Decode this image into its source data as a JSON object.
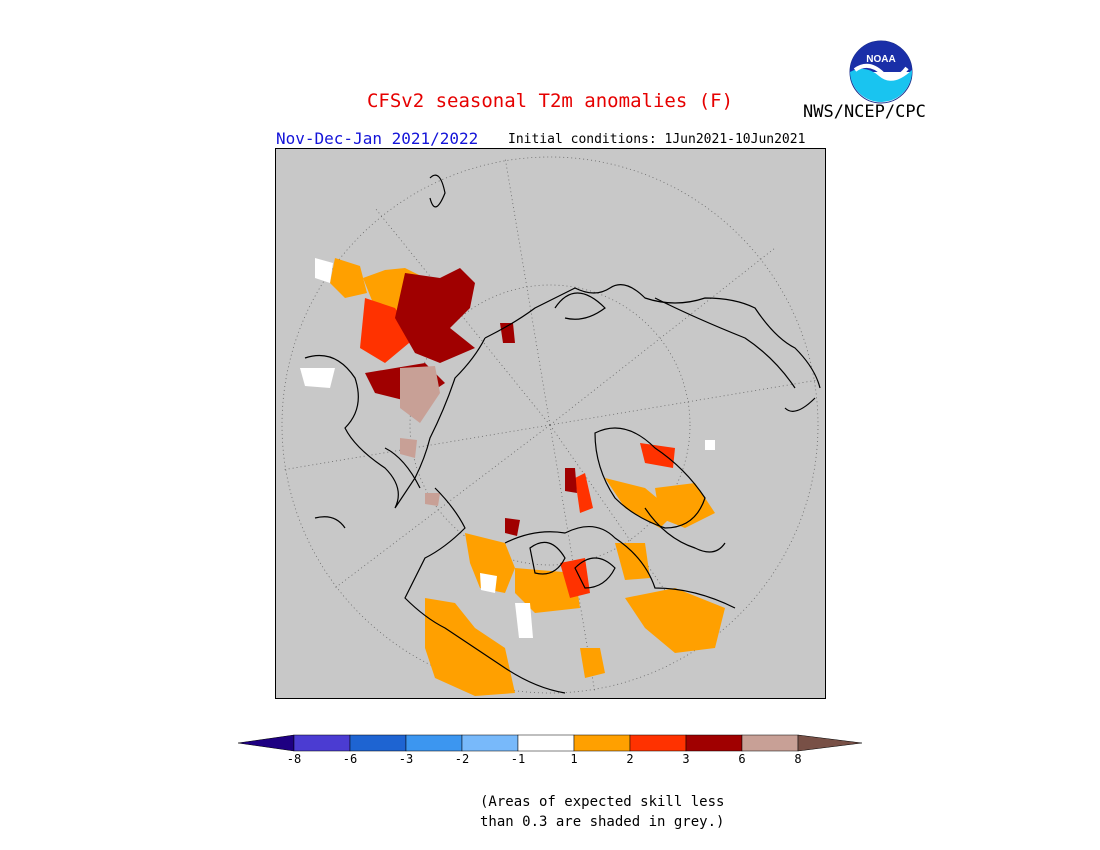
{
  "title": "CFSv2 seasonal T2m anomalies (F)",
  "agency": "NWS/NCEP/CPC",
  "logo_text": "NOAA",
  "season": "Nov-Dec-Jan 2021/2022",
  "initial_conditions": "Initial conditions: 1Jun2021-10Jun2021",
  "colorbar": {
    "tick_labels": [
      "-8",
      "-6",
      "-3",
      "-2",
      "-1",
      "1",
      "2",
      "3",
      "6",
      "8"
    ],
    "colors": {
      "below_-8": "#1e0082",
      "-8_to_-6": "#4b3cd2",
      "-6_to_-3": "#1e64d2",
      "-3_to_-2": "#3c96f0",
      "-2_to_-1": "#78b9fa",
      "-1_to_1": "#ffffff",
      "1_to_2": "#ffa000",
      "2_to_3": "#ff3200",
      "3_to_6": "#a00000",
      "6_to_8": "#c8a096",
      "above_8": "#785046"
    }
  },
  "map_colors": {
    "background": "#c8c8c8",
    "coast": "#000000",
    "grid": "#666666"
  },
  "note": {
    "line1": "(Areas of expected skill less",
    "line2": "than 0.3 are shaded in grey.)"
  }
}
